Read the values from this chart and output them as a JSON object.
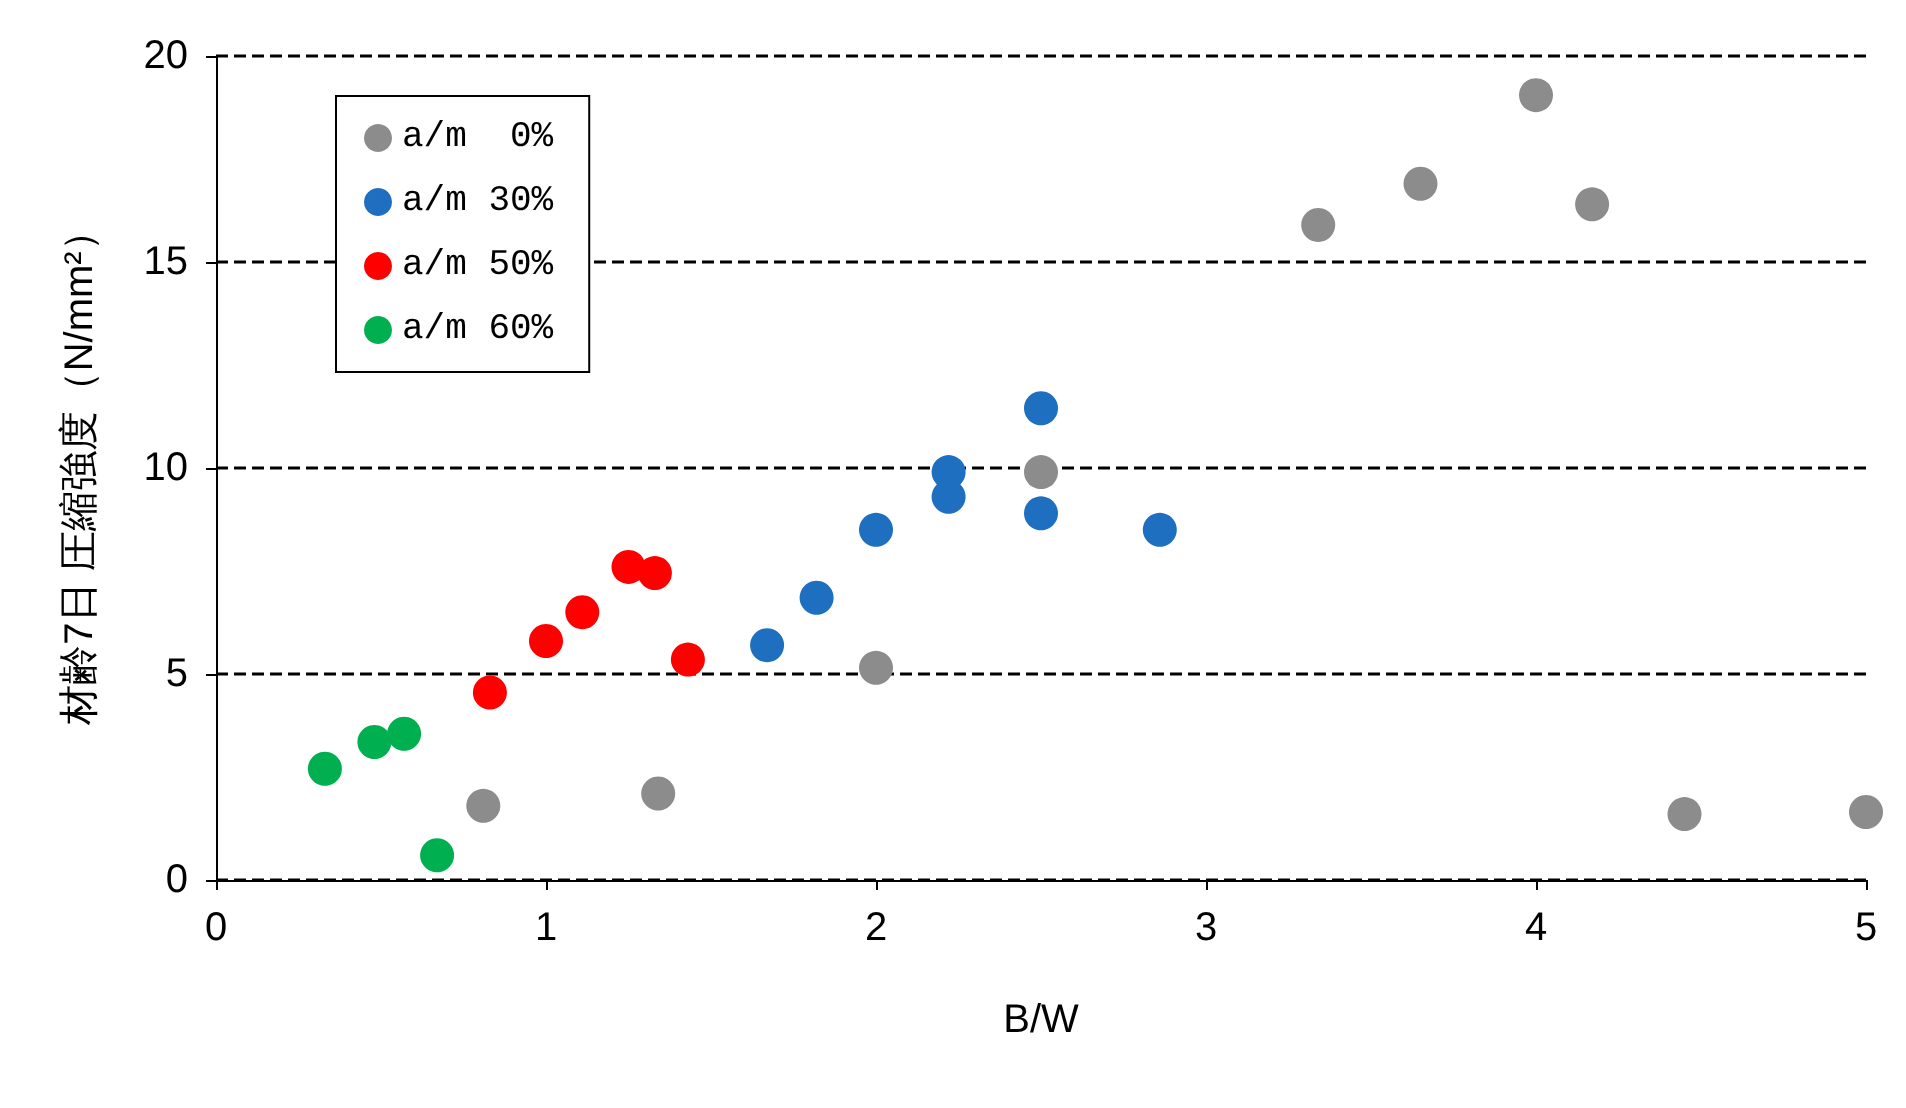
{
  "chart_data": {
    "type": "scatter",
    "xlabel": "B/W",
    "ylabel": "材齢7日 圧縮強度（N/mm²）",
    "xlim": [
      0,
      5
    ],
    "xticks": [
      0,
      1,
      2,
      3,
      4,
      5
    ],
    "ylim": [
      0,
      20
    ],
    "yticks": [
      0,
      5,
      10,
      15,
      20
    ],
    "grid": "y",
    "legend": "top left",
    "marker": "circle",
    "series": [
      {
        "name": "a/m  0%",
        "color": "#8c8c8c",
        "x": [
          4.0,
          3.65,
          3.34,
          4.17,
          2.5,
          2.0,
          0.81,
          1.34,
          4.45,
          5.0
        ],
        "values": [
          19.05,
          16.9,
          15.9,
          16.4,
          9.9,
          5.15,
          1.8,
          2.1,
          1.6,
          1.65
        ]
      },
      {
        "name": "a/m 30%",
        "color": "#1f6fc0",
        "x": [
          2.5,
          2.22,
          2.22,
          2.5,
          2.86,
          2.0,
          1.82,
          1.67
        ],
        "values": [
          11.45,
          9.9,
          9.3,
          8.9,
          8.5,
          8.5,
          6.85,
          5.7
        ]
      },
      {
        "name": "a/m 50%",
        "color": "#ff0000",
        "x": [
          1.25,
          1.33,
          1.11,
          1.0,
          0.83,
          1.43
        ],
        "values": [
          7.6,
          7.45,
          6.5,
          5.8,
          4.55,
          5.35
        ]
      },
      {
        "name": "a/m 60%",
        "color": "#00b050",
        "x": [
          0.33,
          0.48,
          0.57,
          0.67
        ],
        "values": [
          2.7,
          3.35,
          3.55,
          0.6
        ]
      }
    ]
  }
}
